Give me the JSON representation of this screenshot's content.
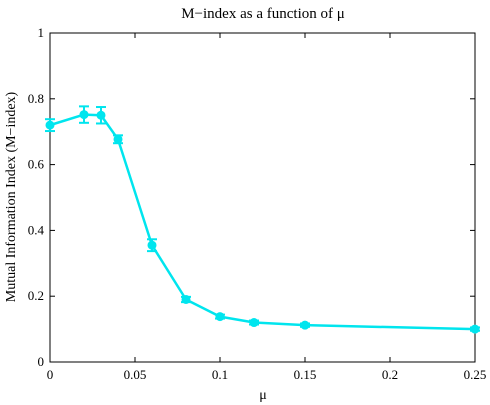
{
  "chart_data": {
    "type": "line",
    "title": "M−index as a function of μ",
    "xlabel": "μ",
    "ylabel": "Mutual Information Index (M−index)",
    "xlim": [
      0,
      0.25
    ],
    "ylim": [
      0,
      1
    ],
    "x_ticks": [
      "0",
      "0.05",
      "0.1",
      "0.15",
      "0.2",
      "0.25"
    ],
    "x_tick_values": [
      0,
      0.05,
      0.1,
      0.15,
      0.2,
      0.25
    ],
    "y_ticks": [
      "0",
      "0.2",
      "0.4",
      "0.6",
      "0.8",
      "1"
    ],
    "y_tick_values": [
      0,
      0.2,
      0.4,
      0.6,
      0.8,
      1
    ],
    "grid": false,
    "series": [
      {
        "color": "#00e5ee",
        "marker": "circle",
        "x": [
          0,
          0.02,
          0.03,
          0.04,
          0.06,
          0.08,
          0.1,
          0.12,
          0.15,
          0.25
        ],
        "y": [
          0.72,
          0.752,
          0.75,
          0.677,
          0.355,
          0.19,
          0.138,
          0.12,
          0.112,
          0.1
        ],
        "error": [
          0.018,
          0.025,
          0.025,
          0.012,
          0.018,
          0.008,
          0.006,
          0.006,
          0.005,
          0.005
        ]
      }
    ]
  }
}
